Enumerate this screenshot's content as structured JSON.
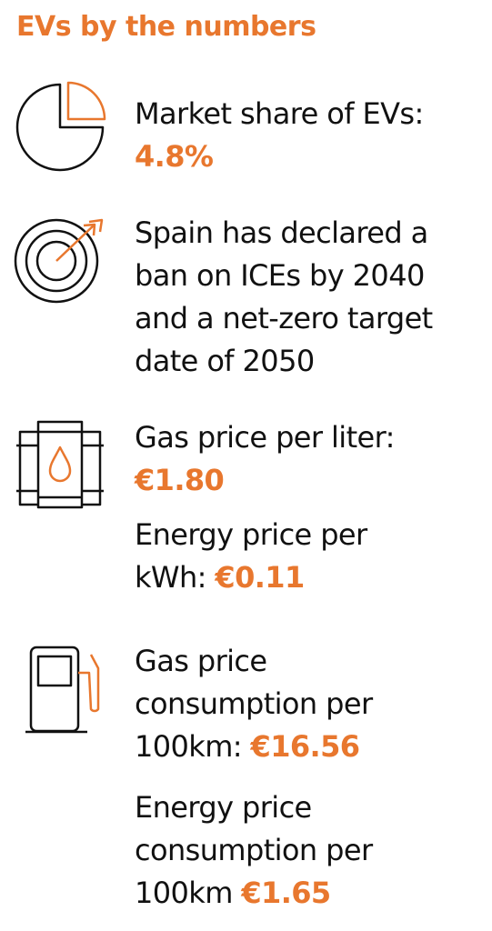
{
  "header": {
    "title": "EVs by the numbers"
  },
  "items": [
    {
      "lines": [
        "Market share of EVs:"
      ],
      "value": "4.8%"
    },
    {
      "lines": [
        "Spain has declared a",
        "ban on ICEs by 2040",
        "and a net-zero target",
        "date of 2050"
      ]
    },
    {
      "paragraphs": [
        {
          "lines": [
            "Gas price per liter:"
          ],
          "value": "€1.80"
        },
        {
          "lines": [
            "Energy price per",
            "kWh:"
          ],
          "value": "€0.11"
        }
      ]
    },
    {
      "paragraphs": [
        {
          "lines": [
            "Gas price",
            "consumption per",
            "100km:"
          ],
          "value": "€16.56"
        },
        {
          "lines": [
            "Energy price",
            "consumption per",
            "100km"
          ],
          "value": "€1.65"
        }
      ]
    }
  ]
}
